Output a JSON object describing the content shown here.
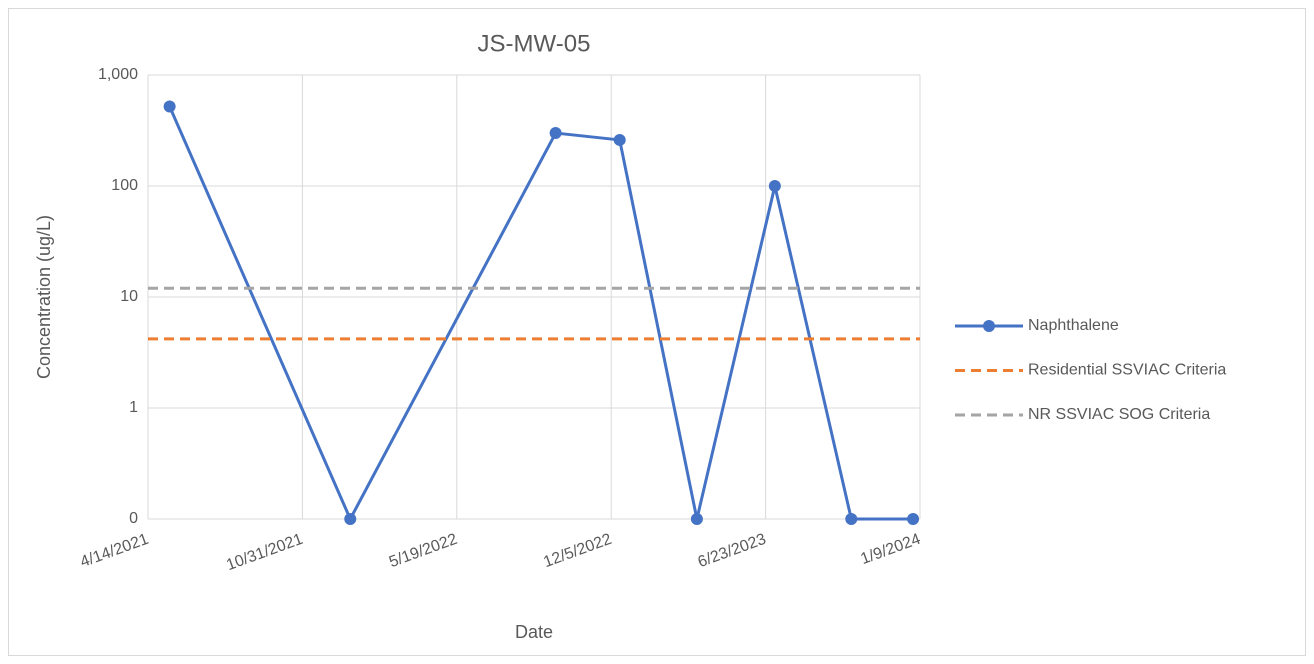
{
  "chart_data": {
    "type": "line",
    "title": "JS-MW-05",
    "x_label": "Date",
    "y_label": "Concentration (ug/L)",
    "x": [
      "2021-05-12",
      "2022-01-01",
      "2022-09-24",
      "2022-12-16",
      "2023-03-26",
      "2023-07-05",
      "2023-10-12",
      "2023-12-31"
    ],
    "series": [
      {
        "name": "Naphthalene",
        "color": "#4472c4",
        "values": [
          520,
          0.1,
          300,
          260,
          0.1,
          100,
          0.1,
          0.1
        ],
        "marker": true,
        "dash": false
      },
      {
        "name": "Residential SSVIAC Criteria",
        "color": "#ed7d31",
        "x": [
          "2021-04-14",
          "2024-01-09"
        ],
        "values": [
          4.2,
          4.2
        ],
        "marker": false,
        "dash": true
      },
      {
        "name": "NR SSVIAC SOG Criteria",
        "color": "#a5a5a5",
        "x": [
          "2021-04-14",
          "2024-01-09"
        ],
        "values": [
          12,
          12
        ],
        "marker": false,
        "dash": true
      }
    ],
    "xlim": [
      "2021-04-14",
      "2024-01-09"
    ],
    "xticks": [
      {
        "value": "2021-04-14",
        "label": "4/14/2021"
      },
      {
        "value": "2021-10-31",
        "label": "10/31/2021"
      },
      {
        "value": "2022-05-19",
        "label": "5/19/2022"
      },
      {
        "value": "2022-12-05",
        "label": "12/5/2022"
      },
      {
        "value": "2023-06-23",
        "label": "6/23/2023"
      },
      {
        "value": "2024-01-09",
        "label": "1/9/2024"
      }
    ],
    "ylim": [
      0.1,
      1000
    ],
    "yticks": [
      {
        "value": 0.1,
        "label": "0"
      },
      1,
      10,
      100,
      {
        "value": 1000,
        "label": "1,000"
      }
    ],
    "log_y": true,
    "grid": true,
    "legend": "right"
  }
}
